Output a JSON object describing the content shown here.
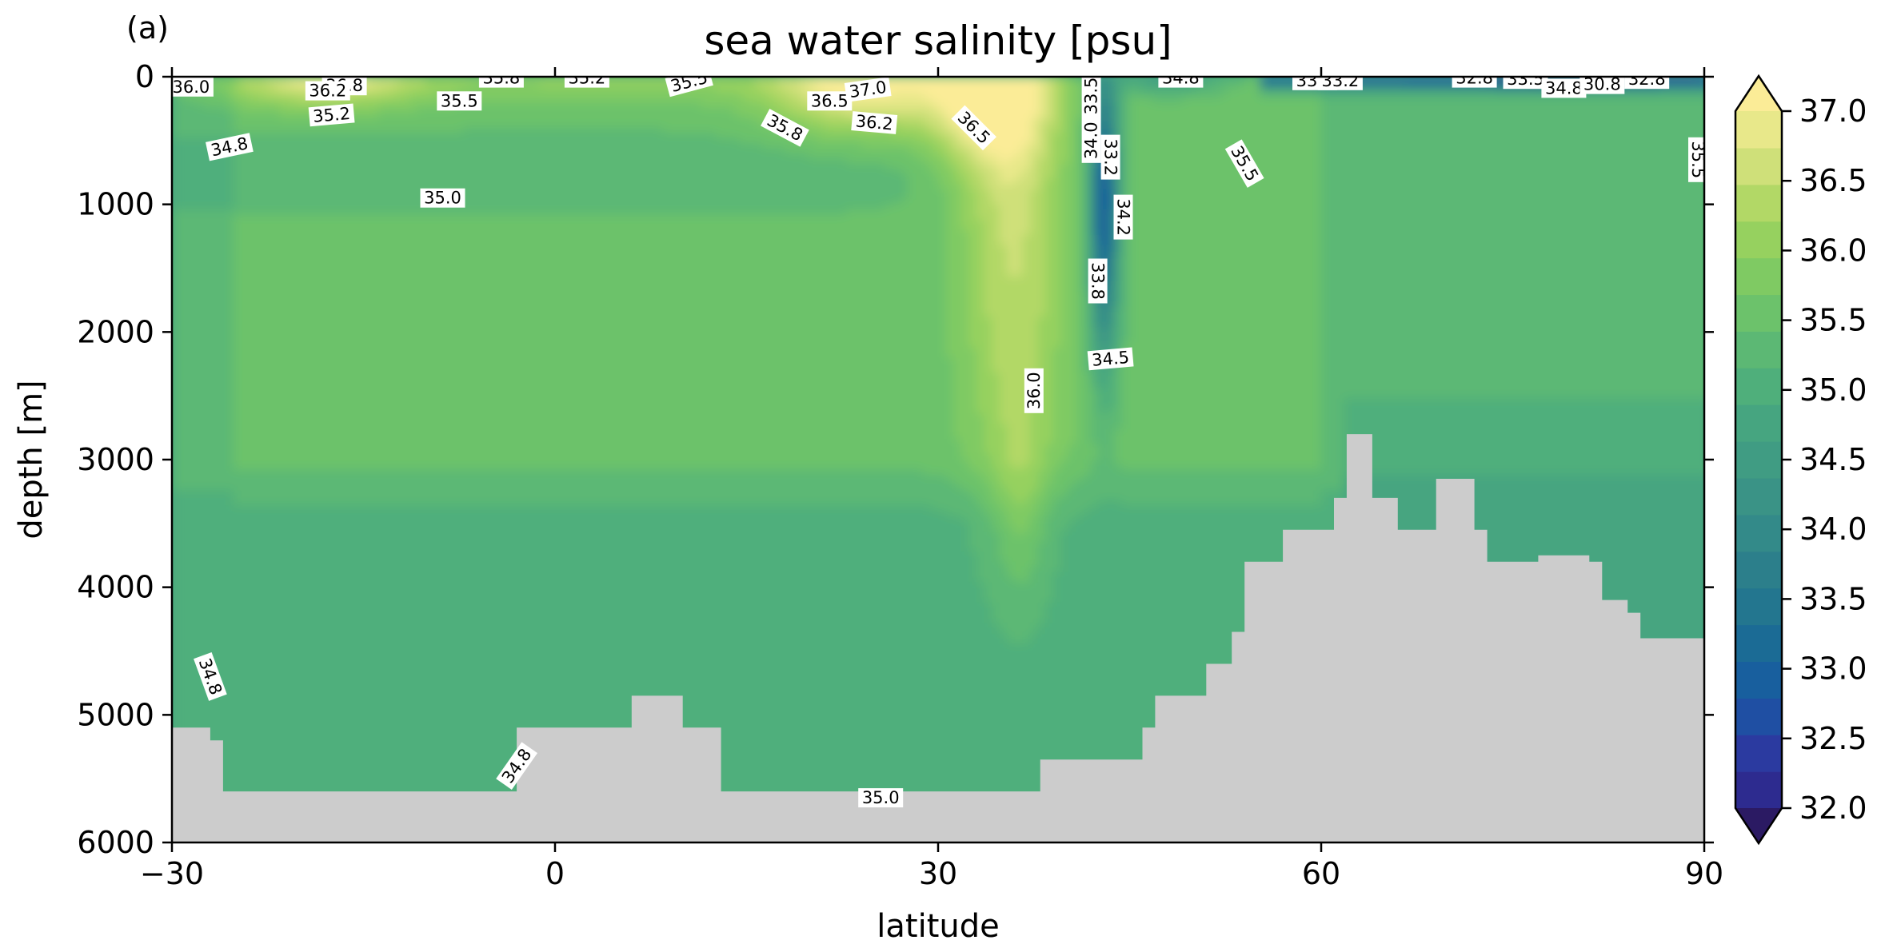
{
  "chart_data": {
    "type": "heatmap",
    "panel_label": "(a)",
    "title": "sea water salinity [psu]",
    "xlabel": "latitude",
    "ylabel": "depth [m]",
    "xlim": [
      -30,
      90
    ],
    "ylim": [
      6000,
      0
    ],
    "y_inverted": true,
    "x_ticks": [
      -30,
      0,
      30,
      60,
      90
    ],
    "x_tick_labels": [
      "−30",
      "0",
      "30",
      "60",
      "90"
    ],
    "y_ticks": [
      0,
      1000,
      2000,
      3000,
      4000,
      5000,
      6000
    ],
    "y_tick_labels": [
      "0",
      "1000",
      "2000",
      "3000",
      "4000",
      "5000",
      "6000"
    ],
    "grid": false,
    "colormap": "haline",
    "colorbar": {
      "range": [
        32.0,
        37.0
      ],
      "ticks": [
        32.0,
        32.5,
        33.0,
        33.5,
        34.0,
        34.5,
        35.0,
        35.5,
        36.0,
        36.5,
        37.0
      ],
      "tick_labels": [
        "32.0",
        "32.5",
        "33.0",
        "33.5",
        "34.0",
        "34.5",
        "35.0",
        "35.5",
        "36.0",
        "36.5",
        "37.0"
      ],
      "extend": "both",
      "level_step": 0.25
    },
    "level_colors": [
      "#2b1a63",
      "#2d2b8f",
      "#2b3aa0",
      "#1f4fa3",
      "#185f9e",
      "#1b6b95",
      "#23768f",
      "#2c7f8b",
      "#338a89",
      "#3a9386",
      "#409c83",
      "#46a580",
      "#4faf7b",
      "#5cb874",
      "#6cc26b",
      "#7fca63",
      "#96d15f",
      "#b2d866",
      "#cfe079",
      "#e8e88a",
      "#fbec97"
    ],
    "land_color": "#cccccc",
    "bathymetry_depth_m": [
      [
        -30,
        5100
      ],
      [
        -28,
        5100
      ],
      [
        -27,
        5200
      ],
      [
        -26,
        5600
      ],
      [
        -24,
        5600
      ],
      [
        -23,
        5600
      ],
      [
        -21,
        5600
      ],
      [
        -19,
        5600
      ],
      [
        -17,
        5600
      ],
      [
        -15,
        5600
      ],
      [
        -10,
        5600
      ],
      [
        -5,
        5600
      ],
      [
        -3,
        5100
      ],
      [
        0,
        5100
      ],
      [
        3,
        5100
      ],
      [
        5,
        5100
      ],
      [
        6,
        4850
      ],
      [
        9,
        4850
      ],
      [
        10,
        5100
      ],
      [
        12,
        5100
      ],
      [
        13,
        5600
      ],
      [
        20,
        5600
      ],
      [
        30,
        5600
      ],
      [
        37,
        5600
      ],
      [
        38,
        5350
      ],
      [
        45,
        5350
      ],
      [
        46,
        5100
      ],
      [
        47,
        4850
      ],
      [
        49,
        4850
      ],
      [
        51,
        4600
      ],
      [
        53,
        4350
      ],
      [
        54,
        3800
      ],
      [
        57,
        3550
      ],
      [
        59,
        3550
      ],
      [
        61,
        3300
      ],
      [
        62,
        2800
      ],
      [
        63,
        2800
      ],
      [
        64,
        3300
      ],
      [
        65,
        3300
      ],
      [
        66,
        3550
      ],
      [
        68,
        3550
      ],
      [
        69,
        3150
      ],
      [
        71,
        3150
      ],
      [
        72,
        3550
      ],
      [
        73,
        3800
      ],
      [
        76,
        3800
      ],
      [
        77,
        3750
      ],
      [
        80,
        3750
      ],
      [
        81,
        3800
      ],
      [
        82,
        4100
      ],
      [
        84,
        4200
      ],
      [
        85,
        4400
      ],
      [
        90,
        4400
      ]
    ],
    "contour_labels": [
      {
        "text": "36.0",
        "x": -28.5,
        "y": 80,
        "angle": 0
      },
      {
        "text": "36.8",
        "x": -16.5,
        "y": 70,
        "angle": 0
      },
      {
        "text": "36.2",
        "x": -17.8,
        "y": 110,
        "angle": 0
      },
      {
        "text": "35.2",
        "x": -17.5,
        "y": 300,
        "angle": -5
      },
      {
        "text": "35.5",
        "x": -7.5,
        "y": 190,
        "angle": 0
      },
      {
        "text": "35.8",
        "x": -4.2,
        "y": 10,
        "angle": 0
      },
      {
        "text": "35.2",
        "x": 2.5,
        "y": 10,
        "angle": 0
      },
      {
        "text": "35.5",
        "x": 10.5,
        "y": 40,
        "angle": -15
      },
      {
        "text": "34.8",
        "x": -25.5,
        "y": 550,
        "angle": -12
      },
      {
        "text": "35.0",
        "x": -8.8,
        "y": 950,
        "angle": 0
      },
      {
        "text": "36.5",
        "x": 21.5,
        "y": 190,
        "angle": 0
      },
      {
        "text": "37.0",
        "x": 24.5,
        "y": 100,
        "angle": -8
      },
      {
        "text": "35.8",
        "x": 18.0,
        "y": 400,
        "angle": 28
      },
      {
        "text": "36.2",
        "x": 25.0,
        "y": 360,
        "angle": 5
      },
      {
        "text": "36.5",
        "x": 32.8,
        "y": 400,
        "angle": 45
      },
      {
        "text": "34.0",
        "x": 42.0,
        "y": 500,
        "angle": -90
      },
      {
        "text": "33.5",
        "x": 42.0,
        "y": 150,
        "angle": -90
      },
      {
        "text": "33.2",
        "x": 43.5,
        "y": 630,
        "angle": 90
      },
      {
        "text": "34.2",
        "x": 44.5,
        "y": 1100,
        "angle": 90
      },
      {
        "text": "33.8",
        "x": 42.5,
        "y": 1600,
        "angle": 90
      },
      {
        "text": "34.5",
        "x": 43.5,
        "y": 2210,
        "angle": -5
      },
      {
        "text": "36.0",
        "x": 37.5,
        "y": 2460,
        "angle": -90
      },
      {
        "text": "34.8",
        "x": 49.0,
        "y": 10,
        "angle": 0
      },
      {
        "text": "35.5",
        "x": 54.0,
        "y": 680,
        "angle": 60
      },
      {
        "text": "33.5",
        "x": 59.5,
        "y": 30,
        "angle": 0
      },
      {
        "text": "33.2",
        "x": 61.5,
        "y": 30,
        "angle": 0
      },
      {
        "text": "32.8",
        "x": 72.0,
        "y": 10,
        "angle": 0
      },
      {
        "text": "33.5",
        "x": 76.0,
        "y": 20,
        "angle": 0
      },
      {
        "text": "34.8",
        "x": 79.0,
        "y": 90,
        "angle": 0
      },
      {
        "text": "30.8",
        "x": 82.0,
        "y": 60,
        "angle": 0
      },
      {
        "text": "32.8",
        "x": 85.5,
        "y": 20,
        "angle": 0
      },
      {
        "text": "35.5",
        "x": 89.5,
        "y": 650,
        "angle": 90
      },
      {
        "text": "34.8",
        "x": -27.0,
        "y": 4700,
        "angle": 70
      },
      {
        "text": "34.8",
        "x": -3.0,
        "y": 5400,
        "angle": -55
      },
      {
        "text": "35.0",
        "x": 25.5,
        "y": 5650,
        "angle": 0
      }
    ]
  }
}
